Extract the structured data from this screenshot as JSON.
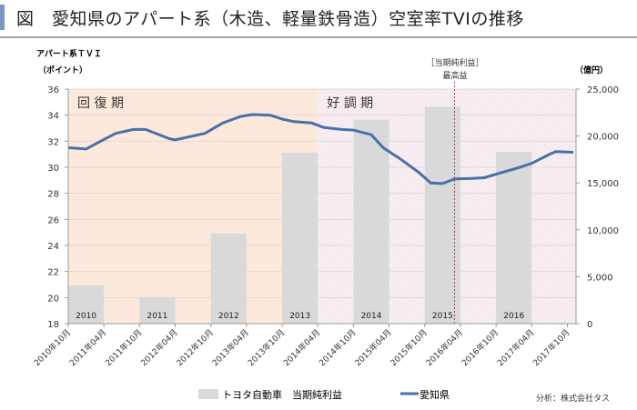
{
  "header": {
    "title": "図　愛知県のアパート系（木造、軽量鉄骨造）空室率TVIの推移"
  },
  "chart_data": {
    "type": "bar+line",
    "left_axis": {
      "label": "アパート系ＴＶＩ",
      "unit": "（ポイント）",
      "range": [
        18,
        36
      ],
      "ticks": [
        "18",
        "20",
        "22",
        "24",
        "26",
        "28",
        "30",
        "32",
        "34",
        "36"
      ]
    },
    "right_axis": {
      "unit": "（億円）",
      "range": [
        0,
        25000
      ],
      "ticks": [
        "0",
        "5,000",
        "10,000",
        "15,000",
        "20,000",
        "25,000"
      ]
    },
    "x_ticks": [
      "2010年10月",
      "2011年04月",
      "2011年10月",
      "2012年04月",
      "2012年10月",
      "2013年04月",
      "2013年10月",
      "2014年04月",
      "2014年10月",
      "2015年04月",
      "2015年10月",
      "2016年04月",
      "2016年10月",
      "2017年04月",
      "2017年10月"
    ],
    "bars": {
      "name": "トヨタ自動車　当期純利益",
      "color": "#d9d9d9",
      "categories": [
        "2010",
        "2011",
        "2012",
        "2013",
        "2014",
        "2015",
        "2016"
      ],
      "values": [
        4081,
        2835,
        9622,
        18231,
        21733,
        23127,
        18311
      ]
    },
    "line": {
      "name": "愛知県",
      "color": "#4a70a8",
      "points": [
        [
          "2010-10",
          31.5
        ],
        [
          "2011-01",
          31.4
        ],
        [
          "2011-03",
          31.9
        ],
        [
          "2011-06",
          32.6
        ],
        [
          "2011-09",
          32.9
        ],
        [
          "2011-11",
          32.9
        ],
        [
          "2012-03",
          32.2
        ],
        [
          "2012-04",
          32.1
        ],
        [
          "2012-06",
          32.3
        ],
        [
          "2012-09",
          32.6
        ],
        [
          "2012-12",
          33.4
        ],
        [
          "2013-03",
          33.9
        ],
        [
          "2013-05",
          34.05
        ],
        [
          "2013-08",
          34.0
        ],
        [
          "2013-10",
          33.7
        ],
        [
          "2013-12",
          33.5
        ],
        [
          "2014-03",
          33.4
        ],
        [
          "2014-05",
          33.05
        ],
        [
          "2014-08",
          32.9
        ],
        [
          "2014-10",
          32.85
        ],
        [
          "2015-01",
          32.5
        ],
        [
          "2015-03",
          31.5
        ],
        [
          "2015-06",
          30.6
        ],
        [
          "2015-09",
          29.6
        ],
        [
          "2015-11",
          28.8
        ],
        [
          "2016-01",
          28.75
        ],
        [
          "2016-03",
          29.1
        ],
        [
          "2016-06",
          29.15
        ],
        [
          "2016-08",
          29.2
        ],
        [
          "2016-11",
          29.6
        ],
        [
          "2017-02",
          30.0
        ],
        [
          "2017-04",
          30.3
        ],
        [
          "2017-07",
          31.0
        ],
        [
          "2017-08",
          31.2
        ],
        [
          "2017-11",
          31.15
        ]
      ]
    },
    "periods": [
      {
        "label": "回 復 期",
        "from": "2010-10",
        "to": "2014-04",
        "color": "#fde9dc"
      },
      {
        "label": "好 調 期",
        "from": "2014-04",
        "to": "2017-12",
        "color": "#f7eef3"
      }
    ],
    "annotation": {
      "line1": "［当期純利益］",
      "line2": "最高益",
      "at": "2016-03",
      "color": "#c0392b"
    },
    "grid": true,
    "legend_position": "bottom",
    "source": "分析：株式会社タス"
  }
}
